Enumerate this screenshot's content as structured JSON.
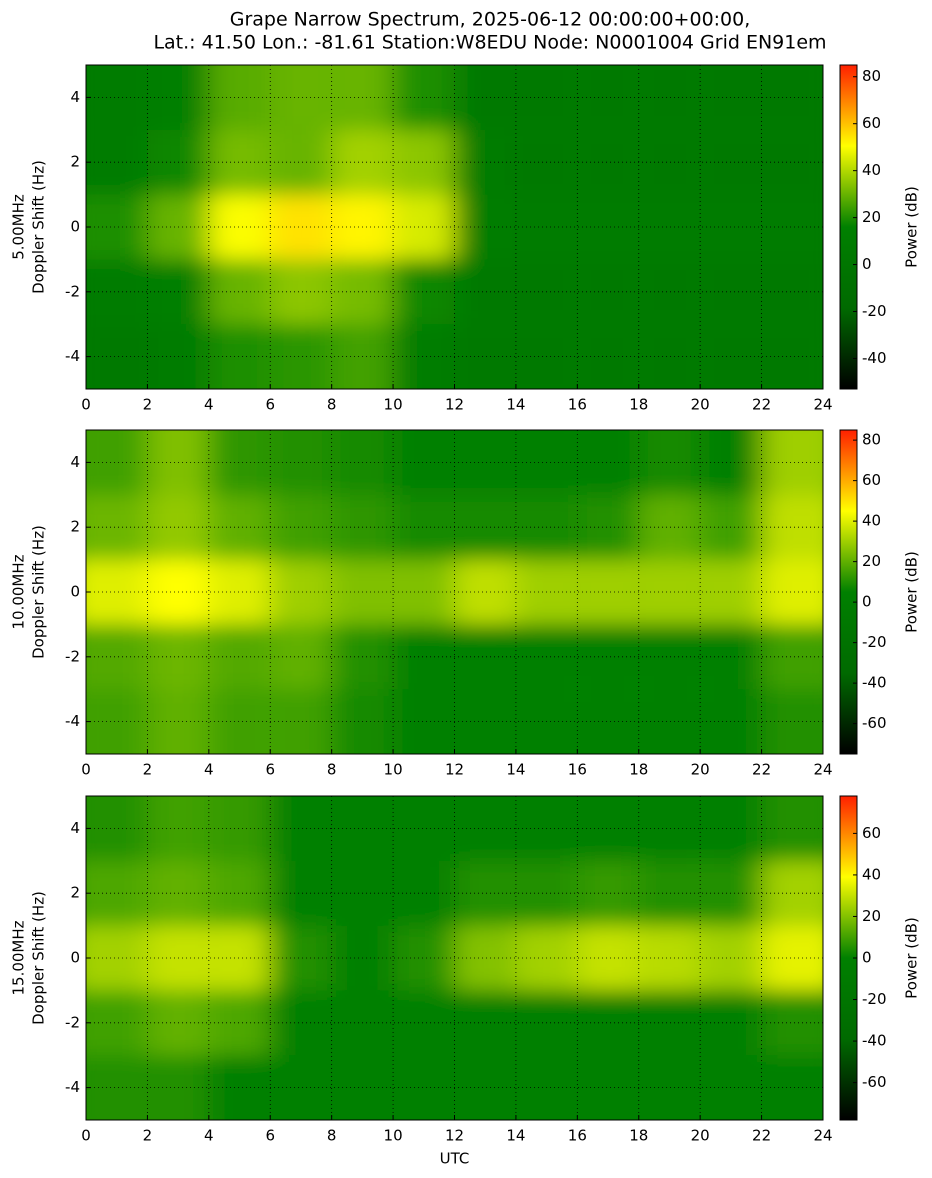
{
  "title": [
    "Grape Narrow Spectrum, 2025-06-12 00:00:00+00:00,",
    "Lat.: 41.50 Lon.: -81.61 Station:W8EDU Node: N0001004 Grid EN91em"
  ],
  "chart_data": [
    {
      "type": "heatmap",
      "ylabel": [
        "5.00MHz",
        "Doppler Shift (Hz)"
      ],
      "colorbar_label": "Power (dB)",
      "xlim": [
        0,
        24
      ],
      "xticks": [
        0,
        2,
        4,
        6,
        8,
        10,
        12,
        14,
        16,
        18,
        20,
        22,
        24
      ],
      "ylim": [
        -5,
        5
      ],
      "yticks": [
        -4,
        -2,
        0,
        2,
        4
      ],
      "zlim": [
        -53,
        85
      ],
      "zticks": [
        -40,
        -20,
        0,
        20,
        40,
        60,
        80
      ],
      "colormap": [
        "#000000",
        "#006a00",
        "#008000",
        "#ffff00",
        "#ff2000"
      ],
      "grid": true,
      "xbins": [
        0,
        2,
        4,
        6,
        8,
        10,
        12,
        14,
        16,
        18,
        20,
        22,
        24
      ],
      "ybins": [
        -5,
        -3,
        -1,
        1,
        3,
        5
      ],
      "z": [
        [
          5,
          8,
          20,
          22,
          25,
          12,
          5,
          5,
          5,
          5,
          5,
          5
        ],
        [
          8,
          15,
          30,
          35,
          32,
          18,
          5,
          5,
          5,
          5,
          5,
          5
        ],
        [
          20,
          30,
          50,
          55,
          52,
          45,
          12,
          10,
          10,
          10,
          10,
          10
        ],
        [
          8,
          18,
          32,
          30,
          38,
          35,
          8,
          5,
          5,
          5,
          5,
          5
        ],
        [
          8,
          15,
          28,
          30,
          30,
          20,
          5,
          5,
          5,
          5,
          5,
          5
        ]
      ]
    },
    {
      "type": "heatmap",
      "ylabel": [
        "10.00MHz",
        "Doppler Shift (Hz)"
      ],
      "colorbar_label": "Power (dB)",
      "xlim": [
        0,
        24
      ],
      "xticks": [
        0,
        2,
        4,
        6,
        8,
        10,
        12,
        14,
        16,
        18,
        20,
        22,
        24
      ],
      "ylim": [
        -5,
        5
      ],
      "yticks": [
        -4,
        -2,
        0,
        2,
        4
      ],
      "zlim": [
        -75,
        85
      ],
      "zticks": [
        -60,
        -40,
        -20,
        0,
        20,
        40,
        60,
        80
      ],
      "colormap": [
        "#000000",
        "#006a00",
        "#008000",
        "#ffff00",
        "#ff2000"
      ],
      "grid": true,
      "xbins": [
        0,
        2,
        4,
        6,
        8,
        10,
        12,
        14,
        16,
        18,
        20,
        22,
        24
      ],
      "ybins": [
        -5,
        -3,
        -1,
        1,
        3,
        5
      ],
      "z": [
        [
          15,
          20,
          15,
          15,
          8,
          5,
          5,
          5,
          5,
          5,
          5,
          10
        ],
        [
          18,
          22,
          18,
          20,
          10,
          5,
          5,
          5,
          5,
          5,
          5,
          15
        ],
        [
          40,
          45,
          40,
          30,
          25,
          25,
          35,
          30,
          30,
          30,
          30,
          40
        ],
        [
          22,
          28,
          20,
          15,
          12,
          8,
          8,
          8,
          10,
          20,
          15,
          35
        ],
        [
          15,
          25,
          12,
          10,
          8,
          5,
          5,
          5,
          5,
          8,
          5,
          30
        ]
      ]
    },
    {
      "type": "heatmap",
      "ylabel": [
        "15.00MHz",
        "Doppler Shift (Hz)"
      ],
      "colorbar_label": "Power (dB)",
      "xlabel": "UTC",
      "xlim": [
        0,
        24
      ],
      "xticks": [
        0,
        2,
        4,
        6,
        8,
        10,
        12,
        14,
        16,
        18,
        20,
        22,
        24
      ],
      "ylim": [
        -5,
        5
      ],
      "yticks": [
        -4,
        -2,
        0,
        2,
        4
      ],
      "zlim": [
        -78,
        78
      ],
      "zticks": [
        -60,
        -40,
        -20,
        0,
        20,
        40,
        60
      ],
      "colormap": [
        "#000000",
        "#006a00",
        "#008000",
        "#ffff00",
        "#ff2000"
      ],
      "grid": true,
      "xbins": [
        0,
        2,
        4,
        6,
        8,
        10,
        12,
        14,
        16,
        18,
        20,
        22,
        24
      ],
      "ybins": [
        -5,
        -3,
        -1,
        1,
        3,
        5
      ],
      "z": [
        [
          5,
          5,
          0,
          0,
          0,
          0,
          0,
          0,
          0,
          0,
          0,
          0
        ],
        [
          10,
          15,
          12,
          0,
          0,
          0,
          0,
          0,
          0,
          0,
          0,
          5
        ],
        [
          25,
          30,
          30,
          5,
          0,
          5,
          20,
          25,
          30,
          28,
          25,
          35
        ],
        [
          12,
          15,
          12,
          0,
          0,
          0,
          5,
          5,
          8,
          5,
          5,
          25
        ],
        [
          5,
          10,
          8,
          0,
          0,
          0,
          0,
          0,
          0,
          0,
          0,
          5
        ]
      ]
    }
  ]
}
